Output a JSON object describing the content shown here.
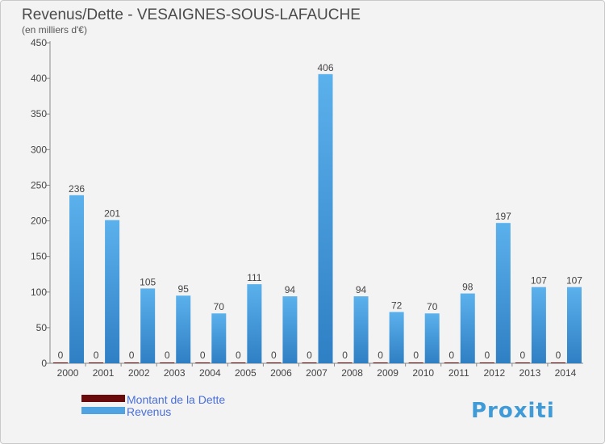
{
  "chart_data": {
    "type": "bar",
    "title": "Revenus/Dette - VESAIGNES-SOUS-LAFAUCHE",
    "subtitle": "(en milliers d'€)",
    "xlabel": "",
    "ylabel": "",
    "ylim": [
      0,
      450
    ],
    "yticks": [
      0,
      50,
      100,
      150,
      200,
      250,
      300,
      350,
      400,
      450
    ],
    "grid": false,
    "legend_position": "bottom-left",
    "categories": [
      "2000",
      "2001",
      "2002",
      "2003",
      "2004",
      "2005",
      "2006",
      "2007",
      "2008",
      "2009",
      "2010",
      "2011",
      "2012",
      "2013",
      "2014"
    ],
    "series": [
      {
        "name": "Montant de la Dette",
        "color": "#6b0a0a",
        "values": [
          0,
          0,
          0,
          0,
          0,
          0,
          0,
          0,
          0,
          0,
          0,
          0,
          0,
          0,
          0
        ]
      },
      {
        "name": "Revenus",
        "color": "#4fa3e0",
        "values": [
          236,
          201,
          105,
          95,
          70,
          111,
          94,
          406,
          94,
          72,
          70,
          98,
          197,
          107,
          107
        ]
      }
    ]
  },
  "watermark": "Proxiti"
}
